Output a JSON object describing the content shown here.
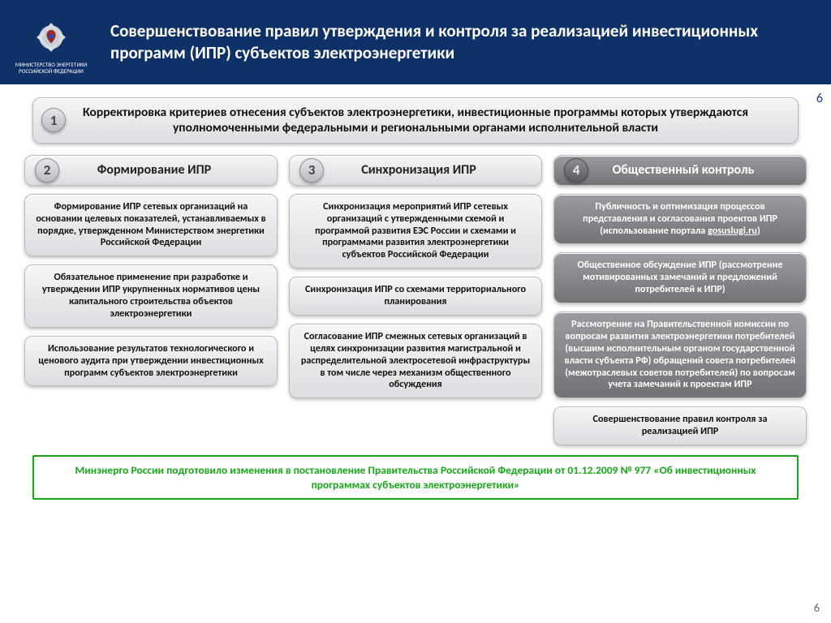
{
  "colors": {
    "header_bg": "#0e3167",
    "card_light_top": "#f5f6f8",
    "card_light_bot": "#dbdde0",
    "card_dark_top": "#9a9ca0",
    "card_dark_bot": "#717377",
    "border": "#b9bcc1",
    "green": "#16a818",
    "page_num": "#184373"
  },
  "header": {
    "ministry_line1": "МИНИСТЕРСТВО ЭНЕРГЕТИКИ",
    "ministry_line2": "РОССИЙСКОЙ ФЕДЕРАЦИИ",
    "title": "Совершенствование правил утверждения и контроля за реализацией инвестиционных программ (ИПР) субъектов электроэнергетики"
  },
  "page_number": "6",
  "section1": {
    "num": "1",
    "text": "Корректировка критериев отнесения субъектов электроэнергетики, инвестиционные программы которых утверждаются уполномоченными федеральными и региональными органами исполнительной власти"
  },
  "tabs": [
    {
      "num": "2",
      "title": "Формирование ИПР",
      "dark": false
    },
    {
      "num": "3",
      "title": "Синхронизация ИПР",
      "dark": false
    },
    {
      "num": "4",
      "title": "Общественный контроль",
      "dark": true
    }
  ],
  "col1": [
    {
      "text": "Формирование ИПР сетевых организаций на основании целевых показателей, устанавливаемых в порядке, утвержденном Министерством энергетики Российской Федерации",
      "dark": false
    },
    {
      "text": "Обязательное применение при разработке и утверждении ИПР укрупненных нормативов цены капитального строительства объектов электроэнергетики",
      "dark": false
    },
    {
      "text": "Использование результатов технологического и ценового аудита при утверждении инвестиционных программ субъектов электроэнергетики",
      "dark": false
    }
  ],
  "col2": [
    {
      "text": "Синхронизация мероприятий ИПР сетевых организаций с утвержденными схемой и программой развития ЕЭС России и схемами и программами развития электроэнергетики субъектов Российской Федерации",
      "dark": false
    },
    {
      "text": "Синхронизация ИПР со схемами территориального планирования",
      "dark": false
    },
    {
      "text": "Согласование ИПР смежных сетевых организаций в целях синхронизации развития магистральной и распределительной электросетевой инфраструктуры в том числе через механизм общественного обсуждения",
      "dark": false
    }
  ],
  "col3": [
    {
      "html": "Публичность и оптимизация процессов представления и согласования проектов ИПР (использование портала <span class='linklike'>gosuslugi.ru</span>)",
      "dark": true
    },
    {
      "text": "Общественное обсуждение ИПР (рассмотрение мотивированных замечаний и предложений потребителей к ИПР)",
      "dark": true
    },
    {
      "text": "Рассмотрение на Правительственной комиссии по вопросам развития электроэнергетики потребителей (высшим исполнительным органом государственной власти субъекта РФ) обращений совета потребителей (межотраслевых советов потребителей) по вопросам учета замечаний к проектам ИПР",
      "dark": true
    },
    {
      "text": "Совершенствование правил контроля за реализацией ИПР",
      "dark": false
    }
  ],
  "footer": "Минэнерго России подготовило изменения в постановление Правительства Российской Федерации от 01.12.2009 № 977 «Об инвестиционных программах субъектов электроэнергетики»"
}
